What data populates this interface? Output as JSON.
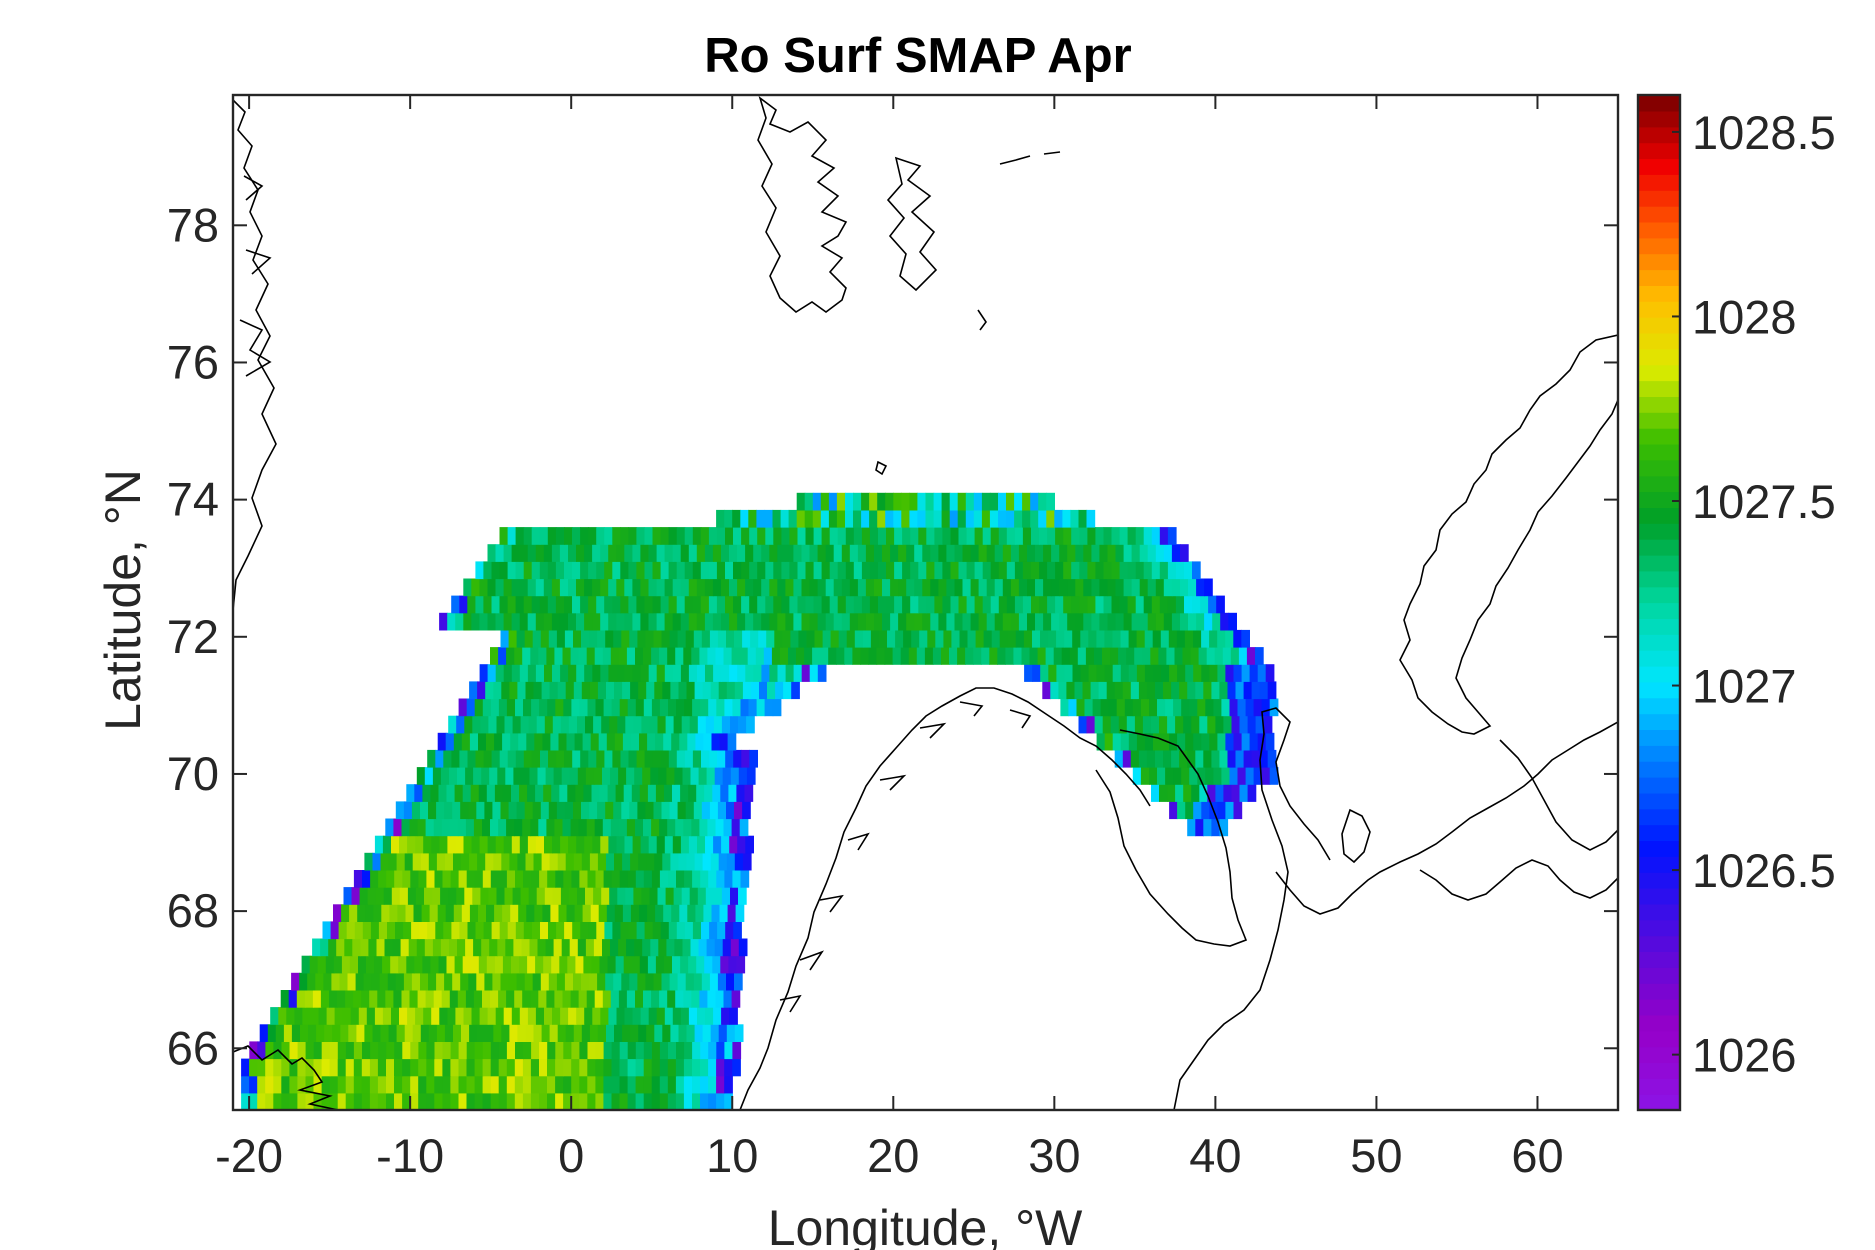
{
  "chart_data": {
    "type": "heatmap",
    "title": "Ro Surf SMAP Apr",
    "xlabel": "Longitude, °W",
    "ylabel": "Latitude, °N",
    "xlim": [
      -21,
      65
    ],
    "ylim": [
      65.1,
      79.9
    ],
    "xticks": [
      -20,
      -10,
      0,
      10,
      20,
      30,
      40,
      50,
      60
    ],
    "xtick_labels": [
      "-20",
      "-10",
      "0",
      "10",
      "20",
      "30",
      "40",
      "50",
      "60"
    ],
    "yticks": [
      66,
      68,
      70,
      72,
      74,
      76,
      78
    ],
    "ytick_labels": [
      "66",
      "68",
      "70",
      "72",
      "74",
      "76",
      "78"
    ],
    "colorbar": {
      "colormap": "jet-like (purple to dark red)",
      "clim": [
        1025.85,
        1028.6
      ],
      "ticks": [
        1026,
        1026.5,
        1027,
        1027.5,
        1028,
        1028.5
      ],
      "tick_labels": [
        "1026",
        "1026.5",
        "1027",
        "1027.5",
        "1028",
        "1028.5"
      ]
    },
    "field_summary": {
      "lon_range": [
        -21,
        43
      ],
      "lat_range": [
        65.1,
        74
      ],
      "interior_values": 1027.4,
      "western_yellow_patch": 1027.7,
      "coastal_edge_values": 1026.7,
      "northern_edge_values": 1027.3
    },
    "grid": false,
    "coastlines": true
  }
}
